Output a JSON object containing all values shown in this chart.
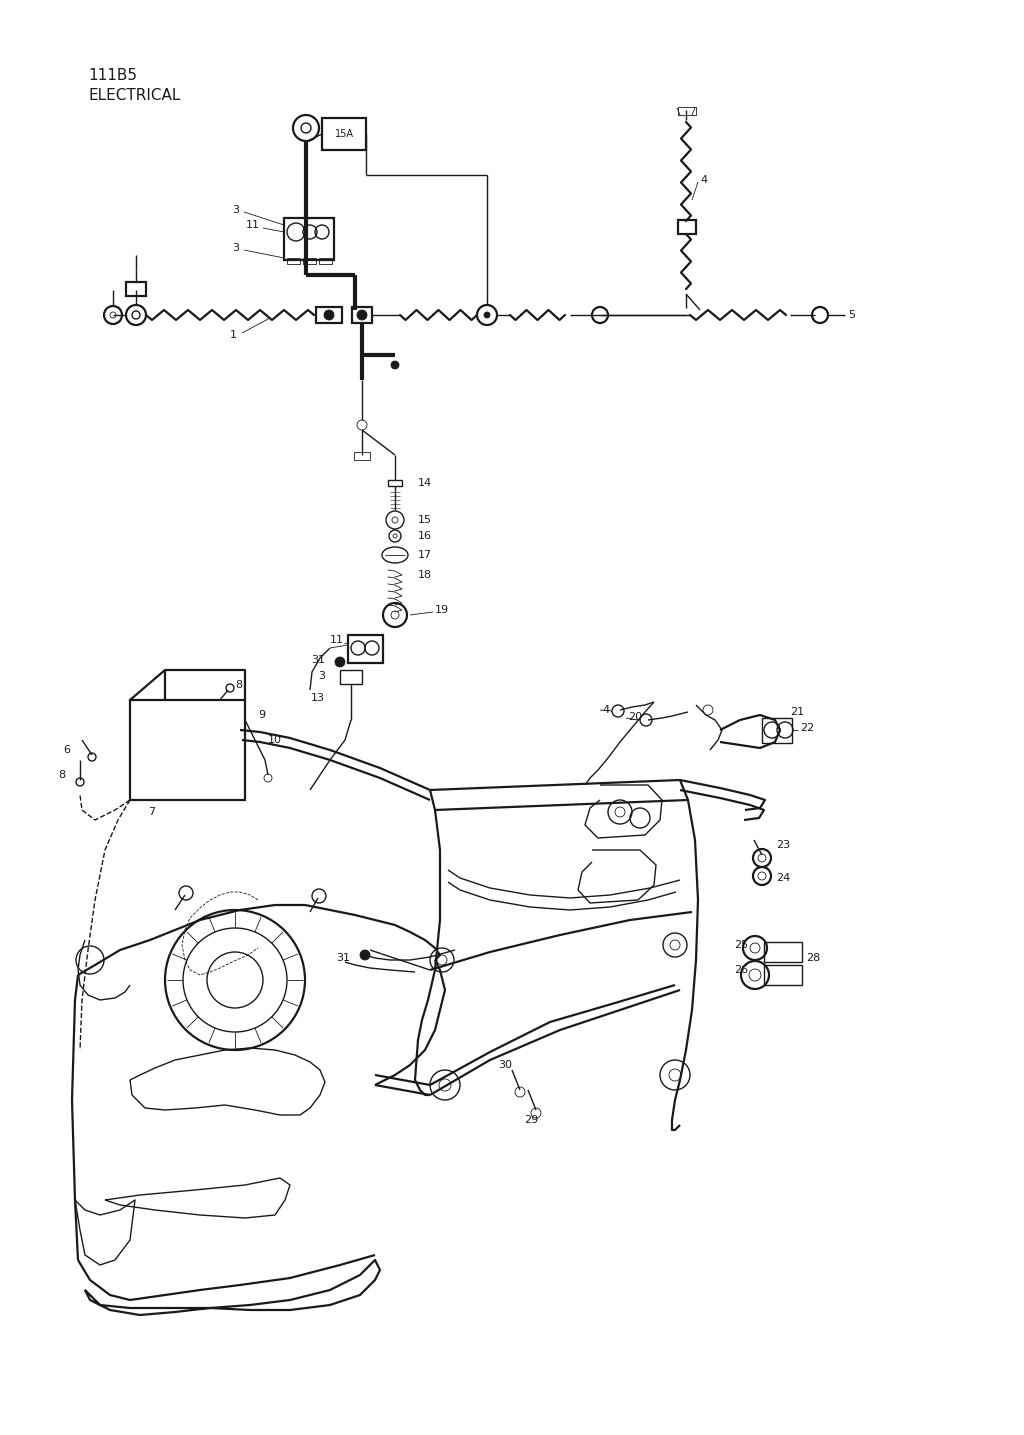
{
  "title_line1": "111B5",
  "title_line2": "ELECTRICAL",
  "background_color": "#ffffff",
  "line_color": "#1a1a1a",
  "fig_width": 10.24,
  "fig_height": 14.35,
  "dpi": 100
}
